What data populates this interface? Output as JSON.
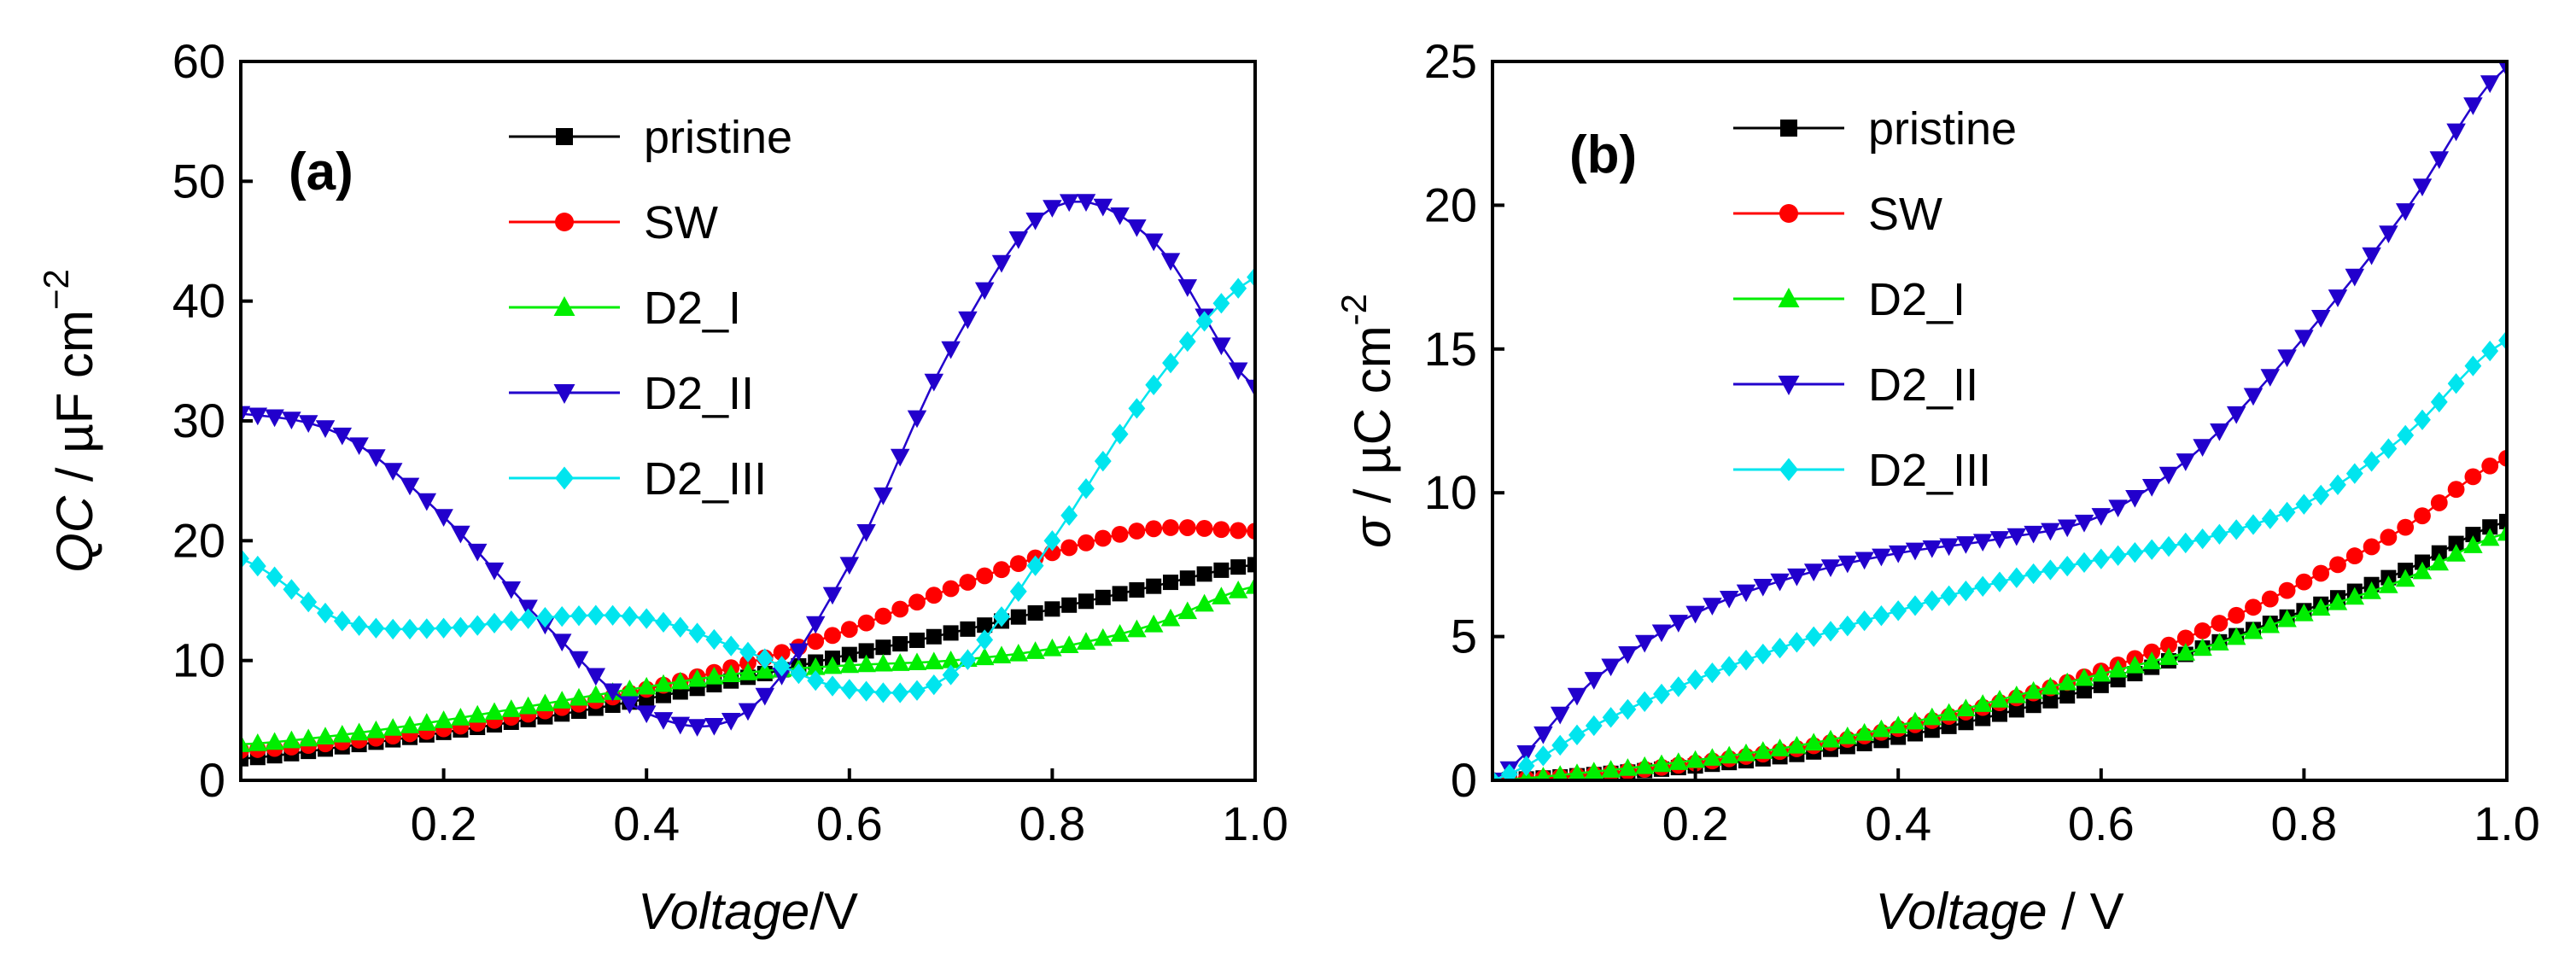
{
  "chart_data": [
    {
      "type": "line",
      "panel_label": "(a)",
      "ylabel_main": "QC",
      "ylabel_unit": " / µF cm",
      "ylabel_sup": "−2",
      "xlabel_main": "Voltage",
      "xlabel_unit": "/V",
      "xlim": [
        0,
        1.0
      ],
      "ylim": [
        0,
        60
      ],
      "xticks": [
        "0.2",
        "0.4",
        "0.6",
        "0.8",
        "1.0"
      ],
      "xtick_values": [
        0.2,
        0.4,
        0.6,
        0.8,
        1.0
      ],
      "yticks": [
        "0",
        "10",
        "20",
        "30",
        "40",
        "50",
        "60"
      ],
      "ytick_values": [
        0,
        10,
        20,
        30,
        40,
        50,
        60
      ],
      "legend_position": "top-center",
      "x": [
        0.0,
        0.1,
        0.2,
        0.3,
        0.4,
        0.5,
        0.6,
        0.7,
        0.8,
        0.9,
        1.0
      ],
      "series": [
        {
          "name": "pristine",
          "color": "#000000",
          "marker": "square",
          "values": [
            1.8,
            2.8,
            4.0,
            5.3,
            6.8,
            8.6,
            10.5,
            12.3,
            14.3,
            16.2,
            18.0
          ]
        },
        {
          "name": "SW",
          "color": "#ff0000",
          "marker": "circle",
          "values": [
            2.5,
            3.2,
            4.3,
            5.8,
            7.6,
            9.8,
            12.6,
            16.0,
            19.0,
            21.0,
            20.8
          ]
        },
        {
          "name": "D2_I",
          "color": "#00ee00",
          "marker": "triangle-up",
          "values": [
            3.0,
            3.8,
            5.0,
            6.4,
            7.8,
            9.0,
            9.6,
            10.0,
            11.0,
            13.0,
            16.2
          ]
        },
        {
          "name": "D2_II",
          "color": "#2200cc",
          "marker": "triangle-down",
          "values": [
            30.6,
            28.8,
            22.0,
            13.0,
            5.6,
            5.8,
            18.0,
            36.0,
            47.8,
            45.0,
            32.8
          ]
        },
        {
          "name": "D2_III",
          "color": "#00e5ee",
          "marker": "diamond",
          "values": [
            18.5,
            13.3,
            12.7,
            13.6,
            13.5,
            10.7,
            7.6,
            8.8,
            20.0,
            33.0,
            42.0
          ]
        }
      ]
    },
    {
      "type": "line",
      "panel_label": "(b)",
      "ylabel_main": "σ",
      "ylabel_unit": " / µC cm",
      "ylabel_sup": "-2",
      "xlabel_main": "Voltage",
      "xlabel_unit": " / V",
      "xlim": [
        0,
        1.0
      ],
      "ylim": [
        0,
        25
      ],
      "xticks": [
        "0.2",
        "0.4",
        "0.6",
        "0.8",
        "1.0"
      ],
      "xtick_values": [
        0.2,
        0.4,
        0.6,
        0.8,
        1.0
      ],
      "yticks": [
        "0",
        "5",
        "10",
        "15",
        "20",
        "25"
      ],
      "ytick_values": [
        0,
        5,
        10,
        15,
        20,
        25
      ],
      "legend_position": "top-center",
      "x": [
        0.0,
        0.1,
        0.2,
        0.3,
        0.4,
        0.5,
        0.6,
        0.7,
        0.8,
        0.9,
        1.0
      ],
      "series": [
        {
          "name": "pristine",
          "color": "#000000",
          "marker": "square",
          "values": [
            0.0,
            0.2,
            0.5,
            0.9,
            1.5,
            2.3,
            3.3,
            4.6,
            5.9,
            7.3,
            9.0
          ]
        },
        {
          "name": "SW",
          "color": "#ff0000",
          "marker": "circle",
          "values": [
            0.0,
            0.2,
            0.6,
            1.1,
            1.8,
            2.7,
            3.8,
            5.2,
            6.9,
            8.8,
            11.2
          ]
        },
        {
          "name": "D2_I",
          "color": "#00ee00",
          "marker": "triangle-up",
          "values": [
            0.0,
            0.3,
            0.7,
            1.2,
            1.9,
            2.8,
            3.7,
            4.6,
            5.8,
            7.0,
            8.6
          ]
        },
        {
          "name": "D2_II",
          "color": "#2200cc",
          "marker": "triangle-down",
          "values": [
            0.0,
            3.5,
            5.8,
            7.1,
            7.9,
            8.4,
            9.2,
            11.6,
            15.4,
            19.8,
            24.8
          ]
        },
        {
          "name": "D2_III",
          "color": "#00e5ee",
          "marker": "diamond",
          "values": [
            0.0,
            1.9,
            3.5,
            4.8,
            5.9,
            6.9,
            7.7,
            8.4,
            9.6,
            12.0,
            15.3
          ]
        }
      ]
    }
  ]
}
